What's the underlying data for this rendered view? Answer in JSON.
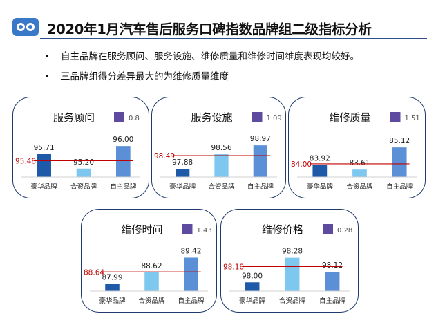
{
  "header": {
    "title": "2020年1月汽车售后服务口碑指数品牌组二级指标分析",
    "bullets": [
      "自主品牌在服务顾问、服务设施、维修质量和维修时间维度表现均较好。",
      "三品牌组得分差异最大的为维修质量维度"
    ]
  },
  "colors": {
    "luxury": "#1e5aa8",
    "joint": "#7ec8f0",
    "domestic": "#5b8fd6",
    "legend": "#5e4ba0",
    "avg_line": "#c00000",
    "border": "#1f3b6e"
  },
  "chart_data": [
    {
      "type": "bar",
      "title": "服务顾问",
      "legend_value": "0.8",
      "categories": [
        "豪华品牌",
        "合资品牌",
        "自主品牌"
      ],
      "values": [
        95.71,
        95.2,
        96.0
      ],
      "value_labels": [
        "95.71",
        "95.20",
        "96.00"
      ],
      "average": 95.48,
      "average_label": "95.48",
      "ylim": [
        94.9,
        96.2
      ]
    },
    {
      "type": "bar",
      "title": "服务设施",
      "legend_value": "1.09",
      "categories": [
        "豪华品牌",
        "合资品牌",
        "自主品牌"
      ],
      "values": [
        97.88,
        98.56,
        98.97
      ],
      "value_labels": [
        "97.88",
        "98.56",
        "98.97"
      ],
      "average": 98.49,
      "average_label": "98.49",
      "ylim": [
        97.5,
        99.2
      ]
    },
    {
      "type": "bar",
      "title": "维修质量",
      "legend_value": "1.51",
      "categories": [
        "豪华品牌",
        "合资品牌",
        "自主品牌"
      ],
      "values": [
        83.92,
        83.61,
        85.12
      ],
      "value_labels": [
        "83.92",
        "83.61",
        "85.12"
      ],
      "average": 84.0,
      "average_label": "84.00",
      "ylim": [
        83.1,
        85.6
      ]
    },
    {
      "type": "bar",
      "title": "维修时间",
      "legend_value": "1.43",
      "categories": [
        "豪华品牌",
        "合资品牌",
        "自主品牌"
      ],
      "values": [
        87.99,
        88.62,
        89.42
      ],
      "value_labels": [
        "87.99",
        "88.62",
        "89.42"
      ],
      "average": 88.64,
      "average_label": "88.64",
      "ylim": [
        87.6,
        89.7
      ]
    },
    {
      "type": "bar",
      "title": "维修价格",
      "legend_value": "0.28",
      "categories": [
        "豪华品牌",
        "合资品牌",
        "自主品牌"
      ],
      "values": [
        98.0,
        98.28,
        98.12
      ],
      "value_labels": [
        "98.00",
        "98.28",
        "98.12"
      ],
      "average": 98.18,
      "average_label": "98.18",
      "ylim": [
        97.9,
        98.34
      ]
    }
  ]
}
